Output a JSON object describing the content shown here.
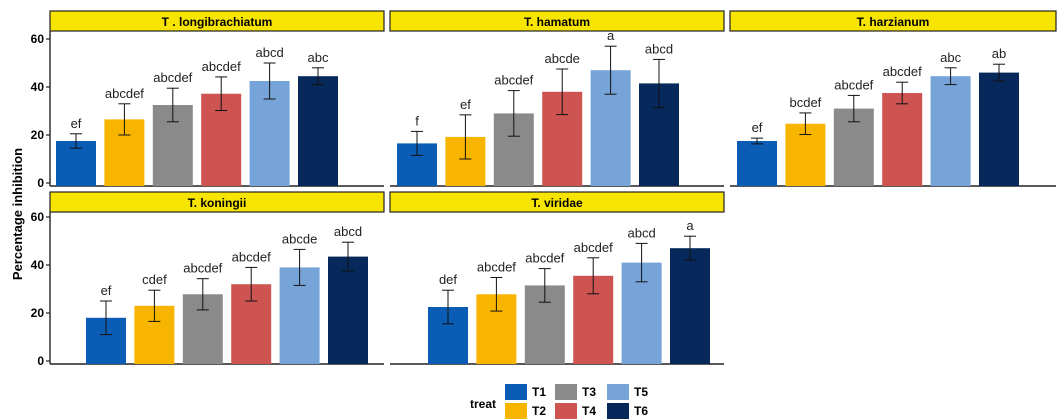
{
  "chart_data": {
    "type": "bar",
    "ylabel": "Percentage inhibition",
    "ylim": [
      0,
      62
    ],
    "yticks": [
      "0",
      "20",
      "40",
      "60"
    ],
    "categories": [
      "T1",
      "T2",
      "T3",
      "T4",
      "T5",
      "T6"
    ],
    "colors": {
      "T1": "#0b5cb5",
      "T2": "#f8b500",
      "T3": "#8a8a8a",
      "T4": "#cd5450",
      "T5": "#76a3d8",
      "T6": "#06285a",
      "strip": "#f7e400"
    },
    "legend": {
      "title": "treat",
      "position": "bottom",
      "items": [
        "T1",
        "T2",
        "T3",
        "T4",
        "T5",
        "T6"
      ]
    },
    "panels": [
      {
        "title": "T . longibrachiatum",
        "values": [
          17.5,
          26.5,
          32.5,
          37.2,
          42.5,
          44.5
        ],
        "errors": [
          3.0,
          6.5,
          7.0,
          7.0,
          7.5,
          3.5
        ],
        "labels": [
          "ef",
          "abcdef",
          "abcdef",
          "abcdef",
          "abcd",
          "abc"
        ]
      },
      {
        "title": "T. hamatum",
        "values": [
          16.5,
          19.2,
          29.0,
          38.0,
          47.0,
          41.5
        ],
        "errors": [
          5.0,
          9.2,
          9.5,
          9.5,
          10.0,
          10.0
        ],
        "labels": [
          "f",
          "ef",
          "abcdef",
          "abcde",
          "a",
          "abcd"
        ]
      },
      {
        "title": "T. harzianum",
        "values": [
          17.5,
          24.7,
          31.0,
          37.5,
          44.5,
          46.0
        ],
        "errors": [
          1.2,
          4.5,
          5.5,
          4.5,
          3.5,
          3.5
        ],
        "labels": [
          "ef",
          "bcdef",
          "abcdef",
          "abcdef",
          "abc",
          "ab"
        ]
      },
      {
        "title": "T. koningii",
        "values": [
          18.0,
          23.0,
          27.8,
          32.0,
          39.0,
          43.5
        ],
        "errors": [
          7.0,
          6.5,
          6.5,
          7.0,
          7.5,
          6.0
        ],
        "labels": [
          "ef",
          "cdef",
          "abcdef",
          "abcdef",
          "abcde",
          "abcd"
        ]
      },
      {
        "title": "T. viridae",
        "values": [
          22.5,
          27.8,
          31.5,
          35.5,
          41.0,
          47.0
        ],
        "errors": [
          7.0,
          7.0,
          7.0,
          7.5,
          8.0,
          5.0
        ],
        "labels": [
          "def",
          "abcdef",
          "abcdef",
          "abcdef",
          "abcd",
          "a"
        ]
      }
    ]
  }
}
